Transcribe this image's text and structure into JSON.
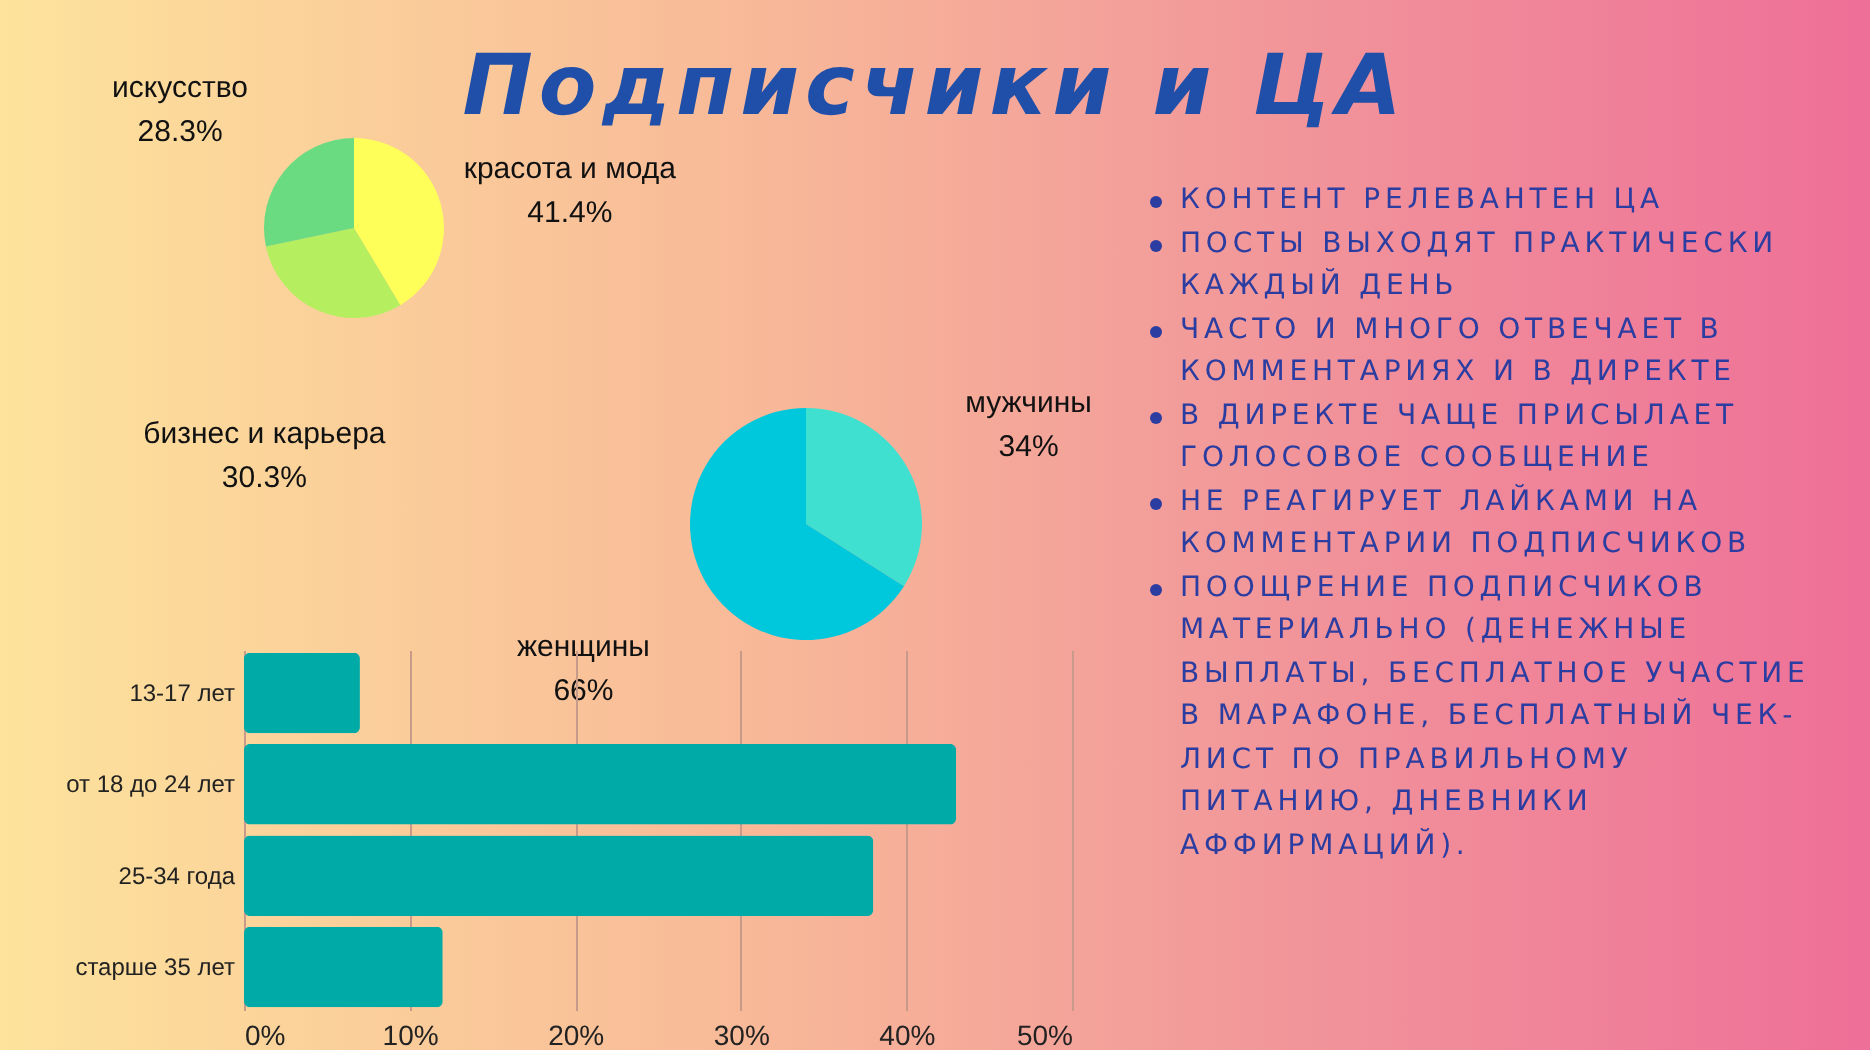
{
  "chart_data": [
    {
      "type": "pie",
      "title": "Подписчики и ЦА",
      "categories": [
        "красота и мода",
        "бизнес и карьера",
        "искусство"
      ],
      "values": [
        41.4,
        30.3,
        28.3
      ],
      "colors": [
        "#ffff5a",
        "#b5ef5f",
        "#6bdb82"
      ],
      "value_labels": [
        "41.4%",
        "30.3%",
        "28.3%"
      ]
    },
    {
      "type": "pie",
      "categories": [
        "мужчины",
        "женщины"
      ],
      "values": [
        34,
        66
      ],
      "colors": [
        "#40e0d0",
        "#00c8dc"
      ],
      "value_labels": [
        "34%",
        "66%"
      ]
    },
    {
      "type": "bar",
      "orientation": "horizontal",
      "categories": [
        "13-17 лет",
        "от 18 до 24 лет",
        "25-34 года",
        "старше 35 лет"
      ],
      "values": [
        7,
        43,
        38,
        12
      ],
      "color": "#00aaa6",
      "xlim": [
        0,
        50
      ],
      "xticks": [
        {
          "value": 0,
          "label": "0%"
        },
        {
          "value": 10,
          "label": "10%"
        },
        {
          "value": 20,
          "label": "20%"
        },
        {
          "value": 30,
          "label": "30%"
        },
        {
          "value": 40,
          "label": "40%"
        },
        {
          "value": 50,
          "label": "50%"
        }
      ],
      "grid": "x"
    },
    {
      "type": "other",
      "annotations": [
        "КОНТЕНТ РЕЛЕВАНТЕН ЦА",
        "ПОСТЫ ВЫХОДЯТ ПРАКТИЧЕСКИ КАЖДЫЙ ДЕНЬ",
        "ЧАСТО И МНОГО ОТВЕЧАЕТ В КОММЕНТАРИЯХ И В ДИРЕКТЕ",
        "В ДИРЕКТЕ ЧАЩЕ ПРИСЫЛАЕТ ГОЛОСОВОЕ СООБЩЕНИЕ",
        "НЕ РЕАГИРУЕТ ЛАЙКАМИ НА КОММЕНТАРИИ ПОДПИСЧИКОВ",
        "ПООЩРЕНИЕ ПОДПИСЧИКОВ МАТЕРИАЛЬНО (ДЕНЕЖНЫЕ ВЫПЛАТЫ, БЕСПЛАТНОЕ УЧАСТИЕ В МАРАФОНЕ, БЕСПЛАТНЫЙ ЧЕК-ЛИСТ ПО ПРАВИЛЬНОМУ ПИТАНИЮ, ДНЕВНИКИ АФФИРМАЦИЙ)."
      ]
    }
  ]
}
